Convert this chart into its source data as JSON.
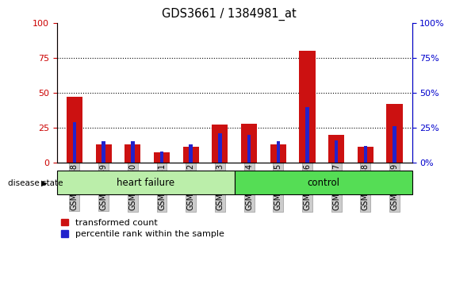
{
  "title": "GDS3661 / 1384981_at",
  "categories": [
    "GSM476048",
    "GSM476049",
    "GSM476050",
    "GSM476051",
    "GSM476052",
    "GSM476053",
    "GSM476054",
    "GSM476055",
    "GSM476056",
    "GSM476057",
    "GSM476058",
    "GSM476059"
  ],
  "red_values": [
    47,
    13,
    13,
    7,
    11,
    27,
    28,
    13,
    80,
    20,
    11,
    42
  ],
  "blue_values": [
    29,
    15,
    15,
    8,
    13,
    21,
    20,
    15,
    40,
    16,
    12,
    26
  ],
  "heart_failure_count": 6,
  "control_count": 6,
  "heart_failure_label": "heart failure",
  "control_label": "control",
  "disease_state_label": "disease state",
  "legend_red": "transformed count",
  "legend_blue": "percentile rank within the sample",
  "ylim": [
    0,
    100
  ],
  "yticks": [
    0,
    25,
    50,
    75,
    100
  ],
  "left_axis_color": "#cc0000",
  "right_axis_color": "#0000cc",
  "bar_color_red": "#cc1111",
  "bar_color_blue": "#2222cc",
  "heart_failure_bg": "#bbeeaa",
  "control_bg": "#55dd55",
  "tick_bg": "#cccccc",
  "red_bar_width": 0.55,
  "blue_bar_width": 0.12,
  "fig_width": 5.63,
  "fig_height": 3.54
}
